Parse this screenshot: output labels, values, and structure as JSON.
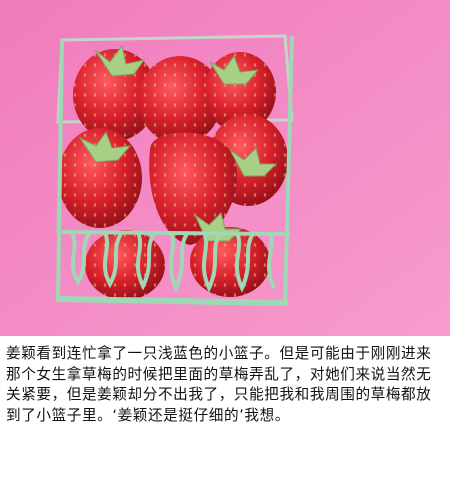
{
  "colors": {
    "background": "#f58ac3",
    "strawberry": "#d8202c",
    "basket": "#9ed8b4",
    "caption_text": "#111111"
  },
  "caption": {
    "text": "姜颖看到连忙拿了一只浅蓝色的小篮子。但是可能由于刚刚进来那个女生拿草梅的时候把里面的草梅弄乱了，对她们来说当然无关紧要，但是姜颖却分不出我了，只能把我和我周围的草梅都放到了小篮子里。‘姜颖还是挺仔细的’我想。"
  }
}
